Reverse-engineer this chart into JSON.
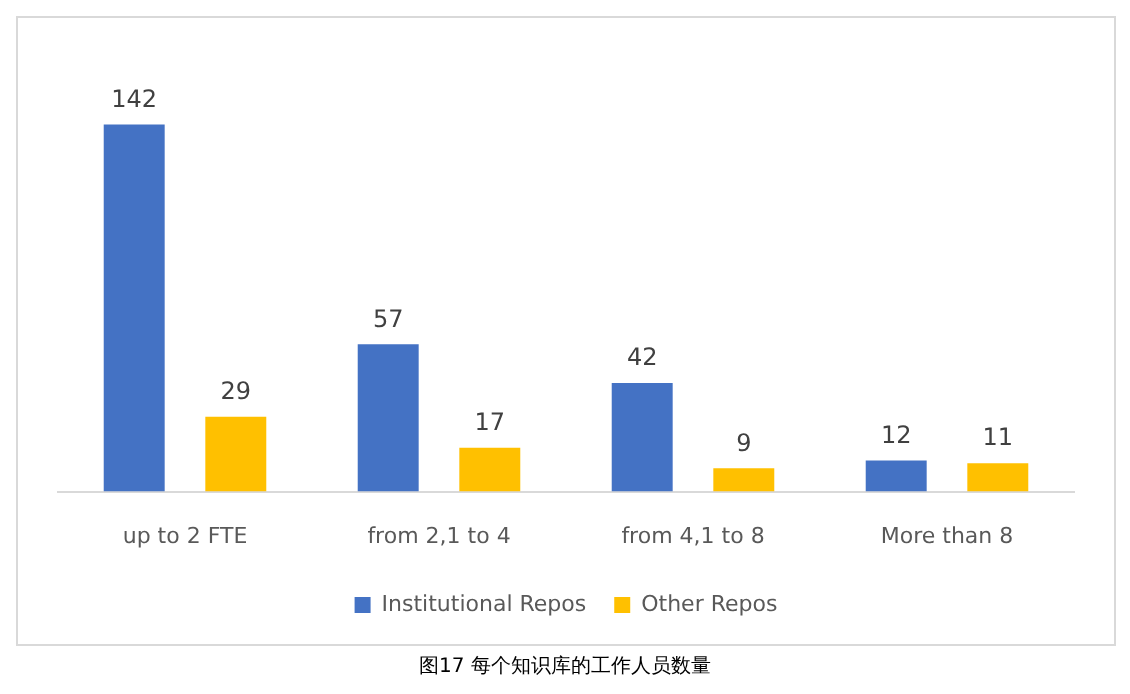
{
  "chart_data": {
    "type": "bar",
    "categories": [
      "up to 2 FTE",
      "from 2,1 to 4",
      "from 4,1 to 8",
      "More than 8"
    ],
    "series": [
      {
        "name": "Institutional Repos",
        "color": "#4472c4",
        "values": [
          142,
          57,
          42,
          12
        ]
      },
      {
        "name": "Other Repos",
        "color": "#ffc000",
        "values": [
          29,
          17,
          9,
          11
        ]
      }
    ],
    "data_labels": true,
    "legend": "bottom",
    "grid": false,
    "annotations": [
      "图17 每个知识库的工作人员数量"
    ]
  }
}
